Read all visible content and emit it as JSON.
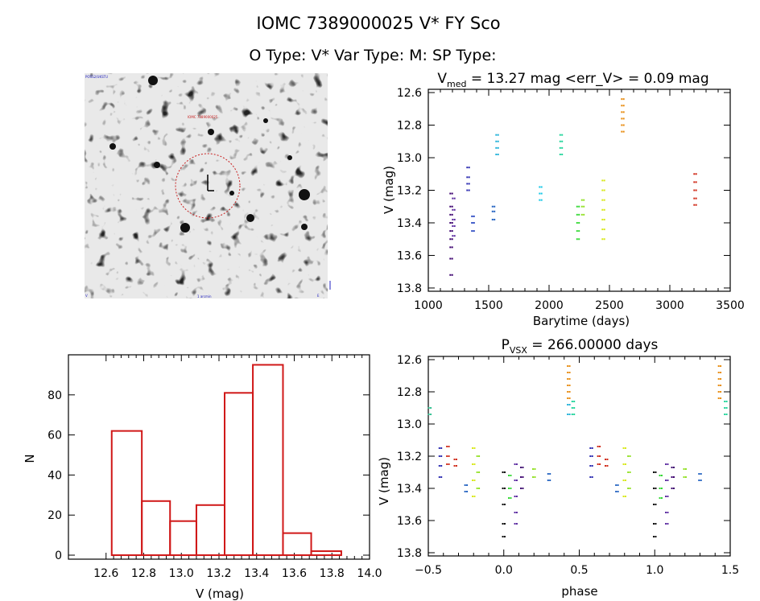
{
  "header": {
    "title": "IOMC 7389000025    V* FY Sco",
    "subtitle": "O Type: V*  Var Type: M:  SP Type:"
  },
  "finder": {
    "label_top_left": "POSS2/UKSTU",
    "label_star": "IOMC 7389000025",
    "label_bottom_left": "V",
    "label_bottom_center": "1 arcmin",
    "label_bottom_right": "E"
  },
  "chart_data": [
    {
      "type": "scatter",
      "id": "light_curve",
      "title_main": "V",
      "title_sub": "med",
      "title_rest": " = 13.27 mag <err_V> = 0.09 mag",
      "xlabel": "Barytime (days)",
      "ylabel": "V (mag)",
      "xlim": [
        1000,
        3500
      ],
      "ylim": [
        12.58,
        13.82
      ],
      "y_inverted": true,
      "xticks": [
        "1000",
        "1500",
        "2000",
        "2500",
        "3000",
        "3500"
      ],
      "xtick_values": [
        1000,
        1500,
        2000,
        2500,
        3000,
        3500
      ],
      "yticks": [
        "12.6",
        "12.8",
        "13.0",
        "13.2",
        "13.4",
        "13.6",
        "13.8"
      ],
      "ytick_values": [
        12.6,
        12.8,
        13.0,
        13.2,
        13.4,
        13.6,
        13.8
      ],
      "groups": [
        {
          "color": "#3b006e",
          "x": 1190,
          "y": [
            13.22,
            13.3,
            13.35,
            13.4,
            13.45,
            13.5,
            13.55,
            13.62,
            13.72
          ]
        },
        {
          "color": "#5a2aa0",
          "x": 1210,
          "y": [
            13.25,
            13.32,
            13.38,
            13.42,
            13.48
          ]
        },
        {
          "color": "#2a2ab0",
          "x": 1330,
          "y": [
            13.06,
            13.12,
            13.16,
            13.2
          ]
        },
        {
          "color": "#1f3fbf",
          "x": 1370,
          "y": [
            13.36,
            13.4,
            13.45
          ]
        },
        {
          "color": "#2060c0",
          "x": 1540,
          "y": [
            13.3,
            13.33,
            13.38
          ]
        },
        {
          "color": "#1fb0d8",
          "x": 1570,
          "y": [
            12.86,
            12.9,
            12.94,
            12.98
          ]
        },
        {
          "color": "#18c8e8",
          "x": 1930,
          "y": [
            13.18,
            13.22,
            13.26
          ]
        },
        {
          "color": "#1fd49a",
          "x": 2100,
          "y": [
            12.86,
            12.9,
            12.94,
            12.98
          ]
        },
        {
          "color": "#30d830",
          "x": 2240,
          "y": [
            13.3,
            13.35,
            13.4,
            13.45,
            13.5
          ]
        },
        {
          "color": "#90e020",
          "x": 2280,
          "y": [
            13.26,
            13.3,
            13.35
          ]
        },
        {
          "color": "#d8e81a",
          "x": 2450,
          "y": [
            13.14,
            13.2,
            13.26,
            13.32,
            13.38,
            13.44,
            13.5
          ]
        },
        {
          "color": "#e88c10",
          "x": 2610,
          "y": [
            12.64,
            12.68,
            12.72,
            12.76,
            12.8,
            12.84
          ]
        },
        {
          "color": "#d02a18",
          "x": 3210,
          "y": [
            13.1,
            13.15,
            13.2,
            13.25,
            13.29
          ]
        }
      ]
    },
    {
      "type": "bar",
      "id": "histogram",
      "xlabel": "V (mag)",
      "ylabel": "N",
      "xlim": [
        12.4,
        14.0
      ],
      "ylim": [
        -2,
        100
      ],
      "xticks": [
        "12.6",
        "12.8",
        "13.0",
        "13.2",
        "13.4",
        "13.6",
        "13.8",
        "14.0"
      ],
      "xtick_values": [
        12.6,
        12.8,
        13.0,
        13.2,
        13.4,
        13.6,
        13.8,
        14.0
      ],
      "yticks": [
        "0",
        "20",
        "40",
        "60",
        "80"
      ],
      "ytick_values": [
        0,
        20,
        40,
        60,
        80
      ],
      "bin_edges": [
        12.63,
        12.79,
        12.94,
        13.08,
        13.23,
        13.38,
        13.54,
        13.69,
        13.85
      ],
      "values": [
        62,
        27,
        17,
        25,
        81,
        95,
        11,
        2
      ],
      "color": "#d01818"
    },
    {
      "type": "scatter",
      "id": "phased",
      "title_main": "P",
      "title_sub": "VSX",
      "title_rest": " = 266.00000 days",
      "xlabel": "phase",
      "ylabel": "V (mag)",
      "xlim": [
        -0.5,
        1.5
      ],
      "ylim": [
        12.58,
        13.82
      ],
      "y_inverted": true,
      "xticks": [
        "−0.5",
        "0.0",
        "0.5",
        "1.0",
        "1.5"
      ],
      "xtick_values": [
        -0.5,
        0.0,
        0.5,
        1.0,
        1.5
      ],
      "yticks": [
        "12.6",
        "12.8",
        "13.0",
        "13.2",
        "13.4",
        "13.6",
        "13.8"
      ],
      "ytick_values": [
        12.6,
        12.8,
        13.0,
        13.2,
        13.4,
        13.6,
        13.8
      ],
      "groups": [
        {
          "color": "#30c090",
          "x": -0.49,
          "y": [
            12.9,
            12.94
          ]
        },
        {
          "color": "#2a2ab0",
          "x": -0.42,
          "y": [
            13.15,
            13.2,
            13.26,
            13.33
          ]
        },
        {
          "color": "#d02a18",
          "x": -0.37,
          "y": [
            13.14,
            13.2,
            13.25
          ]
        },
        {
          "color": "#d02a18",
          "x": -0.32,
          "y": [
            13.22,
            13.26
          ]
        },
        {
          "color": "#2060c0",
          "x": -0.25,
          "y": [
            13.38,
            13.42
          ]
        },
        {
          "color": "#d8e81a",
          "x": -0.2,
          "y": [
            13.15,
            13.25,
            13.35,
            13.45
          ]
        },
        {
          "color": "#90e020",
          "x": -0.17,
          "y": [
            13.2,
            13.3,
            13.4
          ]
        },
        {
          "color": "#000000",
          "x": 0.0,
          "y": [
            13.3,
            13.4,
            13.5,
            13.62,
            13.7
          ]
        },
        {
          "color": "#30d830",
          "x": 0.04,
          "y": [
            13.32,
            13.4,
            13.46
          ]
        },
        {
          "color": "#5a2aa0",
          "x": 0.08,
          "y": [
            13.25,
            13.35,
            13.45,
            13.55,
            13.62
          ]
        },
        {
          "color": "#3b006e",
          "x": 0.12,
          "y": [
            13.27,
            13.33,
            13.4
          ]
        },
        {
          "color": "#90e020",
          "x": 0.2,
          "y": [
            13.28,
            13.33
          ]
        },
        {
          "color": "#2060c0",
          "x": 0.3,
          "y": [
            13.31,
            13.35
          ]
        },
        {
          "color": "#e88c10",
          "x": 0.43,
          "y": [
            12.64,
            12.68,
            12.72,
            12.76,
            12.8,
            12.84
          ]
        },
        {
          "color": "#1fb0d8",
          "x": 0.43,
          "y": [
            12.88,
            12.94
          ]
        },
        {
          "color": "#1fd49a",
          "x": 0.46,
          "y": [
            12.86,
            12.9,
            12.94
          ]
        },
        {
          "color": "#2a2ab0",
          "x": 0.58,
          "y": [
            13.15,
            13.2,
            13.26,
            13.33
          ]
        },
        {
          "color": "#d02a18",
          "x": 0.63,
          "y": [
            13.14,
            13.2,
            13.25
          ]
        },
        {
          "color": "#d02a18",
          "x": 0.68,
          "y": [
            13.22,
            13.26
          ]
        },
        {
          "color": "#2060c0",
          "x": 0.75,
          "y": [
            13.38,
            13.42
          ]
        },
        {
          "color": "#d8e81a",
          "x": 0.8,
          "y": [
            13.15,
            13.25,
            13.35,
            13.45
          ]
        },
        {
          "color": "#90e020",
          "x": 0.83,
          "y": [
            13.2,
            13.3,
            13.4
          ]
        },
        {
          "color": "#000000",
          "x": 1.0,
          "y": [
            13.3,
            13.4,
            13.5,
            13.62,
            13.7
          ]
        },
        {
          "color": "#30d830",
          "x": 1.04,
          "y": [
            13.32,
            13.4,
            13.46
          ]
        },
        {
          "color": "#5a2aa0",
          "x": 1.08,
          "y": [
            13.25,
            13.35,
            13.45,
            13.55,
            13.62
          ]
        },
        {
          "color": "#3b006e",
          "x": 1.12,
          "y": [
            13.27,
            13.33,
            13.4
          ]
        },
        {
          "color": "#90e020",
          "x": 1.2,
          "y": [
            13.28,
            13.33
          ]
        },
        {
          "color": "#2060c0",
          "x": 1.3,
          "y": [
            13.31,
            13.35
          ]
        },
        {
          "color": "#e88c10",
          "x": 1.43,
          "y": [
            12.64,
            12.68,
            12.72,
            12.76,
            12.8,
            12.84
          ]
        },
        {
          "color": "#1fd49a",
          "x": 1.47,
          "y": [
            12.86,
            12.9,
            12.94
          ]
        }
      ]
    }
  ]
}
